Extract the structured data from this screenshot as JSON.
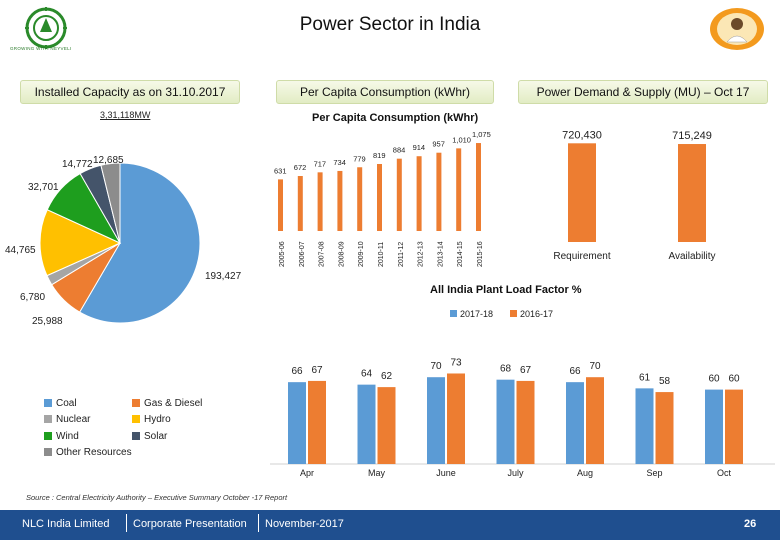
{
  "slide": {
    "title": "Power Sector in India",
    "logo_left_caption": "GROWING WITH NEYVELI",
    "page_number": "26"
  },
  "headers": {
    "installed": "Installed Capacity as on 31.10.2017",
    "per_capita": "Per Capita Consumption (kWhr)",
    "demand": "Power Demand & Supply (MU) – Oct 17"
  },
  "installed_total": "3,31,118MW",
  "colors": {
    "orange": "#ed7d31",
    "blue": "#5b9bd5",
    "grey": "#a5a5a5",
    "yellow": "#ffc000",
    "green": "#1e9e1e",
    "navy": "#44546a",
    "gray2": "#8c8c8c",
    "footer": "#1f4f8f"
  },
  "chart_data": [
    {
      "type": "pie",
      "title": "Installed Capacity as on 31.10.2017",
      "labels": [
        "Coal",
        "Gas & Diesel",
        "Nuclear",
        "Hydro",
        "Wind",
        "Solar",
        "Other Resources"
      ],
      "values": [
        193427,
        25988,
        6780,
        44765,
        32701,
        14772,
        12685
      ],
      "value_labels": [
        "193,427",
        "25,988",
        "6,780",
        "44,765",
        "32,701",
        "14,772",
        "12,685"
      ],
      "legend": [
        "Coal",
        "Gas & Diesel",
        "Nuclear",
        "Hydro",
        "Wind",
        "Solar",
        "Other Resources"
      ]
    },
    {
      "type": "bar",
      "title": "Per Capita Consumption (kWhr)",
      "categories": [
        "2005-06",
        "2006-07",
        "2007-08",
        "2008-09",
        "2009-10",
        "2010-11",
        "2011-12",
        "2012-13",
        "2013-14",
        "2014-15",
        "2015-16"
      ],
      "values": [
        631,
        672,
        717,
        734,
        779,
        819,
        884,
        914,
        957,
        1010,
        1075
      ],
      "value_labels": [
        "631",
        "672",
        "717",
        "734",
        "779",
        "819",
        "884",
        "914",
        "957",
        "1,010",
        "1,075"
      ],
      "ylim": [
        0,
        1100
      ]
    },
    {
      "type": "bar",
      "title": "Power Demand & Supply (MU) – Oct 17",
      "categories": [
        "Requirement",
        "Availability"
      ],
      "values": [
        720430,
        715249
      ],
      "value_labels": [
        "720,430",
        "715,249"
      ]
    },
    {
      "type": "bar",
      "title": "All India Plant Load Factor %",
      "categories": [
        "Apr",
        "May",
        "June",
        "July",
        "Aug",
        "Sep",
        "Oct"
      ],
      "series": [
        {
          "name": "2017-18",
          "values": [
            66,
            64,
            70,
            68,
            66,
            61,
            60
          ]
        },
        {
          "name": "2016-17",
          "values": [
            67,
            62,
            73,
            67,
            70,
            58,
            60
          ]
        }
      ],
      "legend": [
        "2017-18",
        "2016-17"
      ],
      "ylim": [
        0,
        100
      ]
    }
  ],
  "source": "Source : Central Electricity Authority – Executive Summary October -17 Report",
  "footer": {
    "company": "NLC India Limited",
    "presentation": "Corporate Presentation",
    "date": "November-2017"
  }
}
